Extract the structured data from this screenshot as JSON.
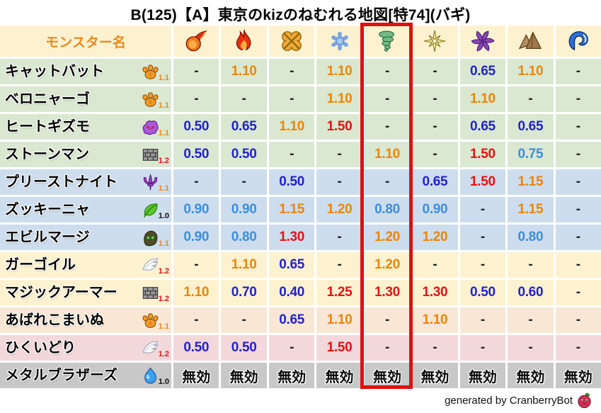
{
  "title": "B(125)【A】東京のkizのねむれる地図[特74](バギ)",
  "table": {
    "name_header": "モンスター名",
    "columns": [
      {
        "id": "mera",
        "icon": "fireball-icon"
      },
      {
        "id": "gira",
        "icon": "flame-icon"
      },
      {
        "id": "io",
        "icon": "burst-icon"
      },
      {
        "id": "hyado",
        "icon": "snowflake-icon"
      },
      {
        "id": "bagi",
        "icon": "tornado-icon",
        "highlighted": true
      },
      {
        "id": "dein",
        "icon": "sparkle-icon"
      },
      {
        "id": "dolma",
        "icon": "pinwheel-icon"
      },
      {
        "id": "jibaria",
        "icon": "mountain-icon"
      },
      {
        "id": "mizu",
        "icon": "wave-icon"
      }
    ],
    "mult_colors": {
      "1.0": "#111111",
      "1.1": "#e8891e",
      "1.2": "#e01111"
    },
    "value_styles": {
      "-": "dash",
      "無効": "immune",
      "0.40": "blue",
      "0.50": "blue",
      "0.60": "blue",
      "0.65": "blue",
      "0.70": "blue",
      "0.75": "lightblue",
      "0.80": "lightblue",
      "0.90": "lightblue",
      "1.10": "orange",
      "1.15": "orange",
      "1.20": "orange",
      "1.25": "red",
      "1.30": "red",
      "1.50": "red"
    },
    "rows": [
      {
        "name": "キャットバット",
        "family_icon": "paw-icon",
        "multiplier": "1.1",
        "row_color": "green",
        "values": [
          "-",
          "1.10",
          "-",
          "1.10",
          "-",
          "-",
          "0.65",
          "1.10",
          "-"
        ]
      },
      {
        "name": "ベロニャーゴ",
        "family_icon": "paw-icon",
        "multiplier": "1.1",
        "row_color": "green",
        "values": [
          "-",
          "-",
          "-",
          "1.10",
          "-",
          "-",
          "1.10",
          "-",
          "-"
        ]
      },
      {
        "name": "ヒートギズモ",
        "family_icon": "ghost-icon",
        "multiplier": "1.1",
        "row_color": "green",
        "values": [
          "0.50",
          "0.65",
          "1.10",
          "1.50",
          "-",
          "-",
          "0.65",
          "0.65",
          "-"
        ]
      },
      {
        "name": "ストーンマン",
        "family_icon": "brick-icon",
        "multiplier": "1.2",
        "row_color": "green",
        "values": [
          "0.50",
          "0.50",
          "-",
          "-",
          "1.10",
          "-",
          "1.50",
          "0.75",
          "-"
        ]
      },
      {
        "name": "プリーストナイト",
        "family_icon": "trident-icon",
        "multiplier": "1.1",
        "row_color": "blue",
        "values": [
          "-",
          "-",
          "0.50",
          "-",
          "-",
          "0.65",
          "1.50",
          "1.15",
          "-"
        ]
      },
      {
        "name": "ズッキーニャ",
        "family_icon": "leaf-icon",
        "multiplier": "1.0",
        "row_color": "blue",
        "values": [
          "0.90",
          "0.90",
          "1.15",
          "1.20",
          "0.80",
          "0.90",
          "-",
          "1.15",
          "-"
        ]
      },
      {
        "name": "エビルマージ",
        "family_icon": "hood-icon",
        "multiplier": "1.1",
        "row_color": "blue",
        "values": [
          "0.90",
          "0.80",
          "1.30",
          "-",
          "1.20",
          "1.20",
          "-",
          "0.80",
          "-"
        ]
      },
      {
        "name": "ガーゴイル",
        "family_icon": "wing-icon",
        "multiplier": "1.2",
        "row_color": "cream",
        "values": [
          "-",
          "1.10",
          "0.65",
          "-",
          "1.20",
          "-",
          "-",
          "-",
          "-"
        ]
      },
      {
        "name": "マジックアーマー",
        "family_icon": "brick-icon",
        "multiplier": "1.2",
        "row_color": "cream",
        "values": [
          "1.10",
          "0.70",
          "0.40",
          "1.25",
          "1.30",
          "1.30",
          "0.50",
          "0.60",
          "-"
        ]
      },
      {
        "name": "あばれこまいぬ",
        "family_icon": "paw-icon",
        "multiplier": "1.1",
        "row_color": "peach",
        "values": [
          "-",
          "-",
          "0.65",
          "1.10",
          "-",
          "1.10",
          "-",
          "-",
          "-"
        ]
      },
      {
        "name": "ひくいどり",
        "family_icon": "wing-icon",
        "multiplier": "1.2",
        "row_color": "pink",
        "values": [
          "0.50",
          "0.50",
          "-",
          "1.50",
          "-",
          "-",
          "-",
          "-",
          "-"
        ]
      },
      {
        "name": "メタルブラザーズ",
        "family_icon": "slime-icon",
        "multiplier": "1.0",
        "row_color": "gray",
        "values": [
          "無効",
          "無効",
          "無効",
          "無効",
          "無効",
          "無効",
          "無効",
          "無効",
          "無効"
        ]
      }
    ]
  },
  "highlight": {
    "column_index": 4,
    "color": "#dd1111"
  },
  "palette": {
    "row_green": "#dae8d1",
    "row_blue": "#cdddee",
    "row_cream": "#fdf2d0",
    "row_peach": "#f8e7d5",
    "row_pink": "#f3d8db",
    "row_gray": "#c8c8c8",
    "header_text": "#e8891e",
    "value_blue": "#2222cc",
    "value_lightblue": "#3d8ede",
    "value_orange": "#ee8500",
    "value_red": "#e81111",
    "highlight_red": "#dd1111"
  },
  "footer": {
    "credit": "generated by CranberryBot",
    "icon": "cranberry-icon"
  },
  "chart_data": {
    "type": "table",
    "title": "B(125)【A】東京のkizのねむれる地図[特74](バギ)",
    "row_header": "モンスター名",
    "column_icons": [
      "fireball",
      "flame",
      "burst",
      "snowflake",
      "tornado",
      "sparkle",
      "pinwheel",
      "mountain",
      "wave"
    ],
    "highlighted_column": "tornado",
    "rows": [
      {
        "monster": "キャットバット",
        "values": [
          "-",
          "1.10",
          "-",
          "1.10",
          "-",
          "-",
          "0.65",
          "1.10",
          "-"
        ]
      },
      {
        "monster": "ベロニャーゴ",
        "values": [
          "-",
          "-",
          "-",
          "1.10",
          "-",
          "-",
          "1.10",
          "-",
          "-"
        ]
      },
      {
        "monster": "ヒートギズモ",
        "values": [
          "0.50",
          "0.65",
          "1.10",
          "1.50",
          "-",
          "-",
          "0.65",
          "0.65",
          "-"
        ]
      },
      {
        "monster": "ストーンマン",
        "values": [
          "0.50",
          "0.50",
          "-",
          "-",
          "1.10",
          "-",
          "1.50",
          "0.75",
          "-"
        ]
      },
      {
        "monster": "プリーストナイト",
        "values": [
          "-",
          "-",
          "0.50",
          "-",
          "-",
          "0.65",
          "1.50",
          "1.15",
          "-"
        ]
      },
      {
        "monster": "ズッキーニャ",
        "values": [
          "0.90",
          "0.90",
          "1.15",
          "1.20",
          "0.80",
          "0.90",
          "-",
          "1.15",
          "-"
        ]
      },
      {
        "monster": "エビルマージ",
        "values": [
          "0.90",
          "0.80",
          "1.30",
          "-",
          "1.20",
          "1.20",
          "-",
          "0.80",
          "-"
        ]
      },
      {
        "monster": "ガーゴイル",
        "values": [
          "-",
          "1.10",
          "0.65",
          "-",
          "1.20",
          "-",
          "-",
          "-",
          "-"
        ]
      },
      {
        "monster": "マジックアーマー",
        "values": [
          "1.10",
          "0.70",
          "0.40",
          "1.25",
          "1.30",
          "1.30",
          "0.50",
          "0.60",
          "-"
        ]
      },
      {
        "monster": "あばれこまいぬ",
        "values": [
          "-",
          "-",
          "0.65",
          "1.10",
          "-",
          "1.10",
          "-",
          "-",
          "-"
        ]
      },
      {
        "monster": "ひくいどり",
        "values": [
          "0.50",
          "0.50",
          "-",
          "1.50",
          "-",
          "-",
          "-",
          "-",
          "-"
        ]
      },
      {
        "monster": "メタルブラザーズ",
        "values": [
          "無効",
          "無効",
          "無効",
          "無効",
          "無効",
          "無効",
          "無効",
          "無効",
          "無効"
        ]
      }
    ]
  }
}
